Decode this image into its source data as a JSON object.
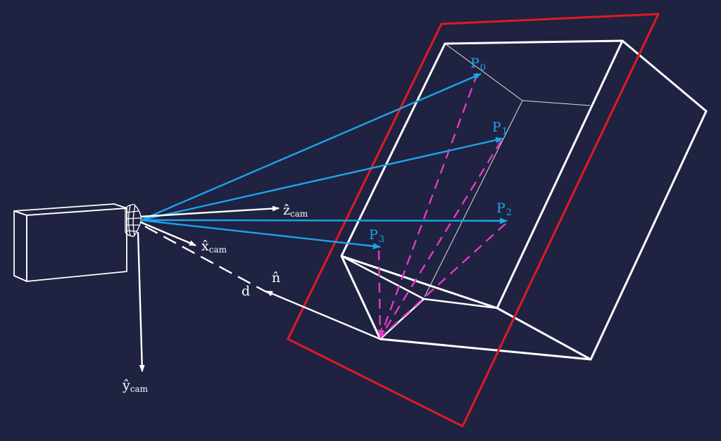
{
  "colors": {
    "background": "#1f2240",
    "white": "#ffffff",
    "point_vectors": "#1aa6ec",
    "plane": "#e01a24",
    "dashed": "#e23bc8"
  },
  "labels": {
    "points": [
      {
        "base": "P",
        "sub": "0"
      },
      {
        "base": "P",
        "sub": "1"
      },
      {
        "base": "P",
        "sub": "2"
      },
      {
        "base": "P",
        "sub": "3"
      }
    ],
    "z_cam": {
      "base": "ẑ",
      "sub": "cam"
    },
    "x_cam": {
      "base": "x̂",
      "sub": "cam"
    },
    "y_cam": {
      "base": "ŷ",
      "sub": "cam"
    },
    "n_hat": "n̂",
    "d": "d"
  }
}
